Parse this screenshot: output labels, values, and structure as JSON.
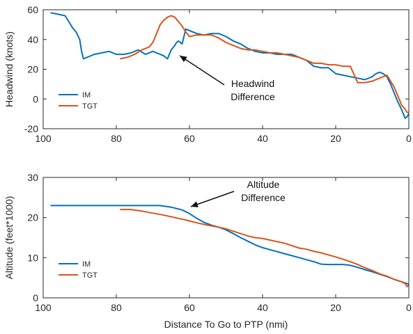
{
  "chart_data": [
    {
      "type": "line",
      "ylabel": "Headwind (knots)",
      "xlabel": "",
      "xlim": [
        100,
        0
      ],
      "ylim": [
        -20,
        60
      ],
      "x_reversed": true,
      "xticks": [
        100,
        80,
        60,
        40,
        20,
        0
      ],
      "yticks": [
        -20,
        0,
        20,
        40,
        60
      ],
      "grid": false,
      "legend_position": "bottom-left",
      "annotation": {
        "lines": [
          "Headwind",
          "Difference"
        ],
        "target": [
          63,
          30
        ]
      },
      "series": [
        {
          "name": "IM",
          "color": "#0072BD",
          "x": [
            98,
            96,
            94,
            93,
            92,
            91,
            90,
            89.5,
            89,
            88,
            86,
            84,
            82,
            80,
            78,
            76,
            74,
            72,
            70,
            68,
            67,
            66,
            65,
            64,
            63.5,
            63,
            62,
            61.5,
            61,
            60,
            58,
            56,
            54,
            52,
            50,
            48,
            46,
            44,
            42,
            40,
            38,
            36,
            34,
            32,
            30,
            28,
            26,
            24,
            22,
            20,
            18,
            16,
            14,
            12,
            10,
            9,
            8,
            7,
            6,
            5,
            4,
            3,
            2,
            1.5,
            1,
            0.5,
            0
          ],
          "y": [
            58,
            57,
            56,
            52,
            48,
            45,
            40,
            32,
            27,
            28,
            30,
            31,
            32,
            30,
            30,
            31,
            33,
            30,
            32,
            30,
            29,
            27,
            33,
            36,
            38,
            39,
            37,
            42,
            47,
            46,
            44,
            43,
            44,
            44,
            42,
            39,
            37,
            34,
            32,
            31,
            31,
            30,
            30,
            30,
            28,
            26,
            22,
            21,
            21,
            17,
            16,
            15,
            14,
            13,
            15,
            17,
            18,
            17,
            15,
            10,
            4,
            -2,
            -7,
            -10,
            -13,
            -12,
            -10
          ]
        },
        {
          "name": "TGT",
          "color": "#D95319",
          "x": [
            79,
            77,
            75,
            73,
            71,
            70,
            69,
            68,
            67,
            66,
            65,
            64,
            63,
            62,
            61,
            60,
            58,
            56,
            54,
            52,
            50,
            48,
            46,
            44,
            42,
            40,
            38,
            36,
            34,
            32,
            30,
            28,
            26,
            24,
            22,
            20,
            18,
            16,
            14,
            12,
            10,
            8,
            6,
            5,
            4,
            3,
            2,
            1,
            0.5,
            0
          ],
          "y": [
            27,
            28,
            30,
            33,
            35,
            38,
            44,
            50,
            53,
            55,
            56,
            55,
            52,
            49,
            45,
            42,
            43,
            43,
            43,
            41,
            38,
            36,
            34,
            33,
            33,
            32,
            31,
            31,
            30,
            29,
            28,
            26,
            24,
            24,
            23,
            23,
            22,
            22,
            11,
            11,
            12,
            14,
            16,
            12,
            8,
            2,
            -4,
            -7,
            -9,
            -9
          ]
        }
      ]
    },
    {
      "type": "line",
      "ylabel": "Altitude (feet*1000)",
      "xlabel": "Distance To Go to PTP (nmi)",
      "xlim": [
        100,
        0
      ],
      "ylim": [
        0,
        30
      ],
      "x_reversed": true,
      "xticks": [
        100,
        80,
        60,
        40,
        20,
        0
      ],
      "yticks": [
        0,
        10,
        20,
        30
      ],
      "grid": false,
      "legend_position": "bottom-left",
      "annotation": {
        "lines": [
          "Altitude",
          "Difference"
        ],
        "target": [
          60,
          22
        ]
      },
      "series": [
        {
          "name": "IM",
          "color": "#0072BD",
          "x": [
            98,
            90,
            80,
            70,
            68,
            65,
            62,
            60,
            58,
            56,
            54,
            52,
            50,
            48,
            46,
            44,
            42,
            40,
            38,
            36,
            34,
            32,
            30,
            28,
            26,
            24,
            22,
            20,
            18,
            16,
            14,
            12,
            10,
            8,
            6,
            4,
            2,
            0
          ],
          "y": [
            23,
            23,
            23,
            23,
            23,
            22.6,
            21.9,
            21,
            19.8,
            18.8,
            18.1,
            17.6,
            16.9,
            16,
            15,
            14.1,
            13.2,
            12.5,
            12,
            11.5,
            11,
            10.5,
            10,
            9.5,
            9,
            8.4,
            8.3,
            8.3,
            8.3,
            8.1,
            7.6,
            7,
            6.5,
            5.9,
            5.3,
            4.6,
            4,
            3.4
          ]
        },
        {
          "name": "TGT",
          "color": "#D95319",
          "x": [
            79,
            76,
            73,
            70,
            67,
            64,
            61,
            58,
            55,
            52,
            50,
            48,
            46,
            44,
            42,
            40,
            38,
            36,
            34,
            32,
            30,
            28,
            26,
            24,
            22,
            20,
            18,
            16,
            14,
            12,
            10,
            8,
            6,
            4,
            2,
            1,
            0.5,
            0
          ],
          "y": [
            22,
            22,
            21.6,
            21.1,
            20.6,
            20,
            19.4,
            18.7,
            18.1,
            17.6,
            17.2,
            16.6,
            16,
            15.4,
            15,
            14.8,
            14.4,
            14,
            13.6,
            13,
            12.4,
            12.1,
            11.6,
            11.2,
            10.7,
            10.2,
            9.6,
            9,
            8.3,
            7.5,
            6.8,
            6,
            5.4,
            4.6,
            4,
            3.5,
            2.8,
            3.1
          ]
        }
      ]
    }
  ]
}
